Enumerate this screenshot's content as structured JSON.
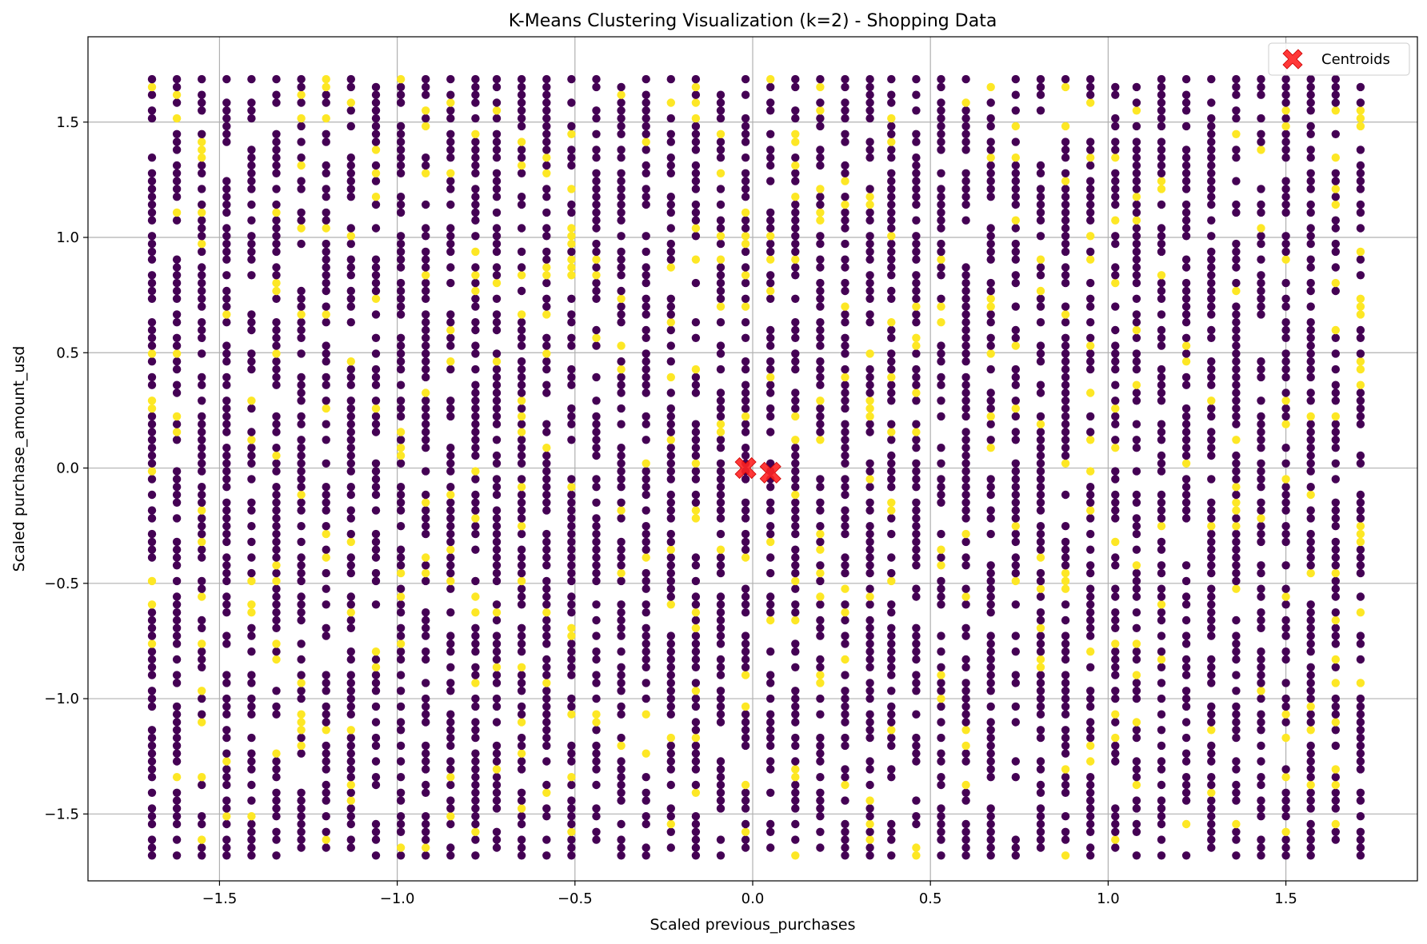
{
  "chart_data": {
    "type": "scatter",
    "title": "K-Means Clustering Visualization (k=2) - Shopping Data",
    "xlabel": "Scaled previous_purchases",
    "ylabel": "Scaled purchase_amount_usd",
    "xlim": [
      -1.87,
      1.87
    ],
    "ylim": [
      -1.79,
      1.87
    ],
    "xticks": [
      -1.5,
      -1.0,
      -0.5,
      0.0,
      0.5,
      1.0,
      1.5
    ],
    "yticks": [
      -1.5,
      -1.0,
      -0.5,
      0.0,
      0.5,
      1.0,
      1.5
    ],
    "xtick_labels": [
      "−1.5",
      "−1.0",
      "−0.5",
      "0.0",
      "0.5",
      "1.0",
      "1.5"
    ],
    "ytick_labels": [
      "−1.5",
      "−1.0",
      "−0.5",
      "0.0",
      "0.5",
      "1.0",
      "1.5"
    ],
    "grid": true,
    "legend_position": "top-right",
    "colors": {
      "cluster_0": "#440154",
      "cluster_1": "#fde725",
      "centroid": "#ff2222"
    },
    "x_levels": [
      -1.69,
      -1.62,
      -1.55,
      -1.48,
      -1.41,
      -1.34,
      -1.27,
      -1.2,
      -1.13,
      -1.06,
      -0.99,
      -0.92,
      -0.85,
      -0.78,
      -0.72,
      -0.65,
      -0.58,
      -0.51,
      -0.44,
      -0.37,
      -0.3,
      -0.23,
      -0.16,
      -0.09,
      -0.02,
      0.05,
      0.12,
      0.19,
      0.26,
      0.33,
      0.39,
      0.46,
      0.53,
      0.6,
      0.67,
      0.74,
      0.81,
      0.88,
      0.95,
      1.02,
      1.08,
      1.15,
      1.22,
      1.29,
      1.36,
      1.43,
      1.5,
      1.57,
      1.64,
      1.71
    ],
    "y_range": [
      -1.68,
      1.7
    ],
    "y_step": 0.034,
    "point_note": "",
    "series": [
      {
        "name": "",
        "cluster": 0
      },
      {
        "name": "",
        "cluster": 1
      }
    ],
    "centroids": {
      "name": "Centroids",
      "points": [
        [
          -0.02,
          0.0
        ],
        [
          0.05,
          -0.02
        ]
      ]
    }
  }
}
